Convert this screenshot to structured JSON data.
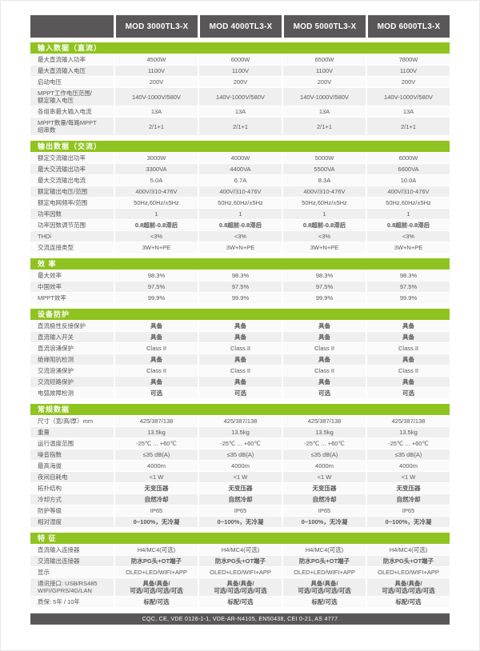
{
  "accent_color": "#8fc31f",
  "header_color": "#595757",
  "models": [
    "MOD 3000TL3-X",
    "MOD 4000TL3-X",
    "MOD 5000TL3-X",
    "MOD 6000TL3-X"
  ],
  "sections": [
    {
      "title": "输入数据（直流）",
      "rows": [
        {
          "label": "最大直流输入功率",
          "values": [
            "4500W",
            "6000W",
            "6500W",
            "7800W"
          ]
        },
        {
          "label": "最大直流输入电压",
          "values": [
            "1100V",
            "1100V",
            "1100V",
            "1100V"
          ]
        },
        {
          "label": "启动电压",
          "values": [
            "200V",
            "200V",
            "200V",
            "200V"
          ]
        },
        {
          "label": "MPPT工作电压范围/\n额定输入电压",
          "values": [
            "140V-1000V/580V",
            "140V-1000V/580V",
            "140V-1000V/580V",
            "140V-1000V/580V"
          ]
        },
        {
          "label": "各组串最大输入电流",
          "values": [
            "13A",
            "13A",
            "13A",
            "13A"
          ]
        },
        {
          "label": "MPPT数量/每路MPPT\n组串数",
          "values": [
            "2/1+1",
            "2/1+1",
            "2/1+1",
            "2/1+1"
          ]
        }
      ]
    },
    {
      "title": "输出数据（交流）",
      "rows": [
        {
          "label": "额定交流输出功率",
          "values": [
            "3000W",
            "4000W",
            "5000W",
            "6000W"
          ]
        },
        {
          "label": "最大交流输出功率",
          "values": [
            "3300VA",
            "4400VA",
            "5500VA",
            "6600VA"
          ]
        },
        {
          "label": "最大交流输出电流",
          "values": [
            "5.0A",
            "6.7A",
            "8.3A",
            "10.0A"
          ]
        },
        {
          "label": "额定输出电压/范围",
          "values": [
            "400V/310-476V",
            "400V/310-476V",
            "400V/310-476V",
            "400V/310-476V"
          ]
        },
        {
          "label": "额定电网频率/范围",
          "values": [
            "50Hz,60Hz/±5Hz",
            "50Hz,60Hz/±5Hz",
            "50Hz,60Hz/±5Hz",
            "50Hz,60Hz/±5Hz"
          ]
        },
        {
          "label": "功率因数",
          "values": [
            "1",
            "1",
            "1",
            "1"
          ]
        },
        {
          "label": "功率因数调节范围",
          "bold": true,
          "values": [
            "0.8超前-0.8滞后",
            "0.8超前-0.8滞后",
            "0.8超前-0.8滞后",
            "0.8超前-0.8滞后"
          ]
        },
        {
          "label": "THDi",
          "values": [
            "<3%",
            "<3%",
            "<3%",
            "<3%"
          ]
        },
        {
          "label": "交流连接类型",
          "values": [
            "3W+N+PE",
            "3W+N+PE",
            "3W+N+PE",
            "3W+N+PE"
          ]
        }
      ]
    },
    {
      "title": "效  率",
      "rows": [
        {
          "label": "最大效率",
          "values": [
            "98.3%",
            "98.3%",
            "98.3%",
            "98.3%"
          ]
        },
        {
          "label": "中国效率",
          "values": [
            "97.5%",
            "97.5%",
            "97.5%",
            "97.5%"
          ]
        },
        {
          "label": "MPPT效率",
          "values": [
            "99.9%",
            "99.9%",
            "99.9%",
            "99.9%"
          ]
        }
      ]
    },
    {
      "title": "设备防护",
      "rows": [
        {
          "label": "直流极性反接保护",
          "bold": true,
          "values": [
            "具备",
            "具备",
            "具备",
            "具备"
          ]
        },
        {
          "label": "直流输入开关",
          "bold": true,
          "values": [
            "具备",
            "具备",
            "具备",
            "具备"
          ]
        },
        {
          "label": "直流浪涌保护",
          "values": [
            "Class II",
            "Class II",
            "Class II",
            "Class II"
          ]
        },
        {
          "label": "绝缘阻抗检测",
          "bold": true,
          "values": [
            "具备",
            "具备",
            "具备",
            "具备"
          ]
        },
        {
          "label": "交流浪涌保护",
          "values": [
            "Class II",
            "Class II",
            "Class II",
            "Class II"
          ]
        },
        {
          "label": "交流短路保护",
          "bold": true,
          "values": [
            "具备",
            "具备",
            "具备",
            "具备"
          ]
        },
        {
          "label": "电弧故障检测",
          "bold": true,
          "values": [
            "可选",
            "可选",
            "可选",
            "可选"
          ]
        }
      ]
    },
    {
      "title": "常规数据",
      "rows": [
        {
          "label": "尺寸（宽/高/厚）mm",
          "values": [
            "425/387/138",
            "425/387/138",
            "425/387/138",
            "425/387/138"
          ]
        },
        {
          "label": "重量",
          "values": [
            "13.5kg",
            "13.5kg",
            "13.5kg",
            "13.5kg"
          ]
        },
        {
          "label": "运行温度范围",
          "values": [
            "-25℃ ... +60℃",
            "-25℃ ... +60℃",
            "-25℃ ... +60℃",
            "-25℃ ... +60℃"
          ]
        },
        {
          "label": "噪音指数",
          "values": [
            "≤35 dB(A)",
            "≤35 dB(A)",
            "≤35 dB(A)",
            "≤35 dB(A)"
          ]
        },
        {
          "label": "最高海拔",
          "values": [
            "4000m",
            "4000m",
            "4000m",
            "4000m"
          ]
        },
        {
          "label": "夜间自耗电",
          "values": [
            "<1 W",
            "<1 W",
            "<1 W",
            "<1 W"
          ]
        },
        {
          "label": "拓扑结构",
          "bold": true,
          "values": [
            "无变压器",
            "无变压器",
            "无变压器",
            "无变压器"
          ]
        },
        {
          "label": "冷却方式",
          "bold": true,
          "values": [
            "自然冷却",
            "自然冷却",
            "自然冷却",
            "自然冷却"
          ]
        },
        {
          "label": "防护等级",
          "values": [
            "IP65",
            "IP65",
            "IP65",
            "IP65"
          ]
        },
        {
          "label": "相对湿度",
          "bold": true,
          "values": [
            "0~100%，无冷凝",
            "0~100%，无冷凝",
            "0~100%，无冷凝",
            "0~100%，无冷凝"
          ]
        }
      ]
    },
    {
      "title": "特  征",
      "rows": [
        {
          "label": "直流输入连接器",
          "values": [
            "H4/MC4(可选)",
            "H4/MC4(可选)",
            "H4/MC4(可选)",
            "H4/MC4(可选)"
          ]
        },
        {
          "label": "交流输出连接器",
          "bold": true,
          "values": [
            "防水PG头+OT端子",
            "防水PG头+OT端子",
            "防水PG头+OT端子",
            "防水PG头+OT端子"
          ]
        },
        {
          "label": "显示",
          "values": [
            "OLED+LED/WIFI+APP",
            "OLED+LED/WIFI+APP",
            "OLED+LED/WIFI+APP",
            "OLED+LED/WIFI+APP"
          ]
        },
        {
          "label": "通讯接口: USB/RS485\nWIFI/GPRS/4G/LAN",
          "bold": true,
          "values": [
            "具备/具备/\n可选/可选/可选/可选",
            "具备/具备/\n可选/可选/可选/可选",
            "具备/具备/\n可选/可选/可选/可选",
            "具备/具备/\n可选/可选/可选/可选"
          ]
        },
        {
          "label": "质保: 5年 / 10年",
          "bold": true,
          "values": [
            "标配/可选",
            "标配/可选",
            "标配/可选",
            "标配/可选"
          ]
        }
      ]
    }
  ],
  "footer": {
    "certifications": "CQC, CE, VDE 0126-1-1, VDE-AR-N4105, EN50438, CEI 0-21, AS 4777"
  }
}
